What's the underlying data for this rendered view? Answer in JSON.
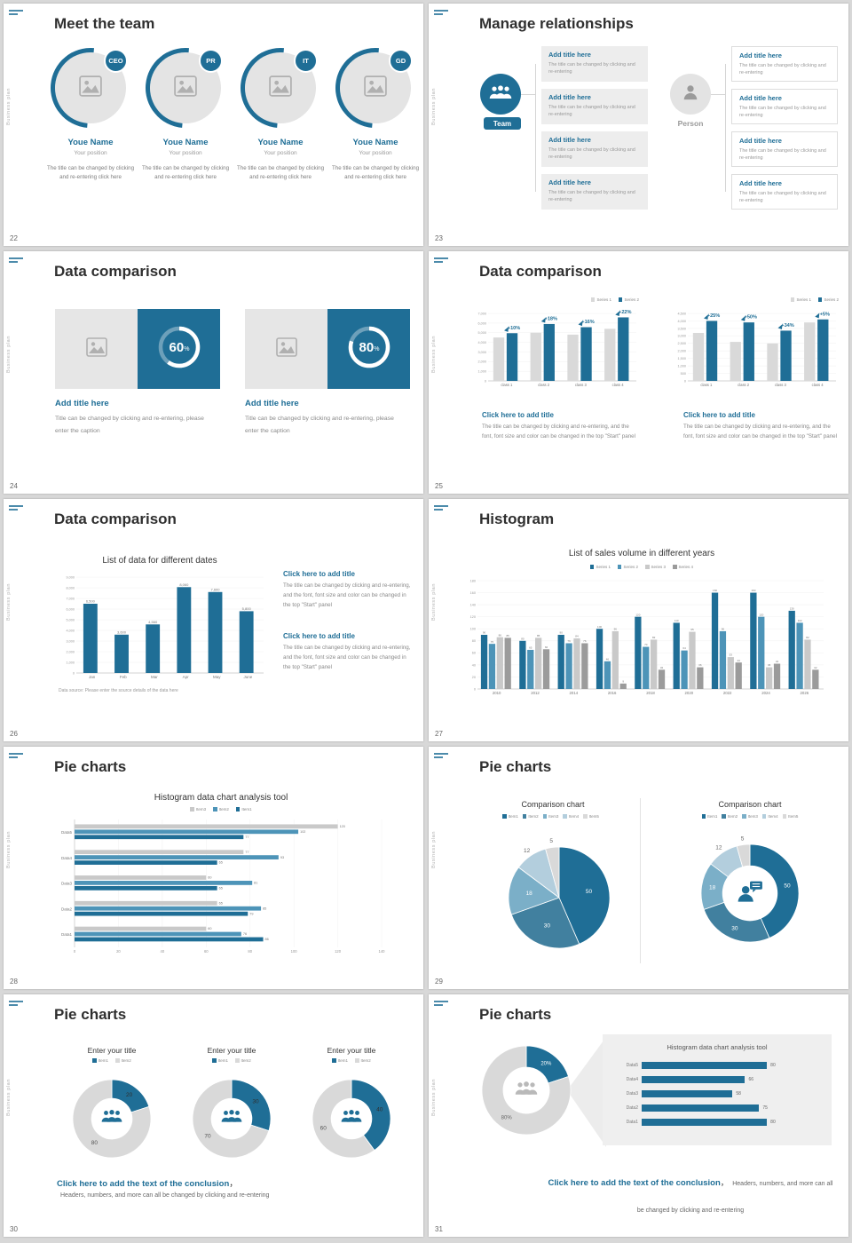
{
  "theme": {
    "accent": "#1f6e96",
    "gray_series": "#d9d9d9",
    "page_bg": "#d8d8d8"
  },
  "side_label": "Business plan",
  "slides": [
    {
      "number": "22",
      "title": "Meet the team",
      "members": [
        {
          "badge": "CEO",
          "name": "Youe Name",
          "position": "Your position",
          "desc": "The title can be changed by clicking and re-entering click here"
        },
        {
          "badge": "PR",
          "name": "Youe Name",
          "position": "Your position",
          "desc": "The title can be changed by clicking and re-entering click here"
        },
        {
          "badge": "IT",
          "name": "Youe Name",
          "position": "Your position",
          "desc": "The title can be changed by clicking and re-entering click here"
        },
        {
          "badge": "GD",
          "name": "Youe Name",
          "position": "Your position",
          "desc": "The title can be changed by clicking and re-entering click here"
        }
      ]
    },
    {
      "number": "23",
      "title": "Manage relationships",
      "team_label": "Team",
      "person_label": "Person",
      "box_title": "Add title here",
      "box_text": "The title can be changed by clicking and re-entering"
    },
    {
      "number": "24",
      "title": "Data comparison",
      "cards": [
        {
          "percent": 60,
          "title": "Add title here",
          "caption": "Title can be changed by clicking and re-entering, please enter the caption"
        },
        {
          "percent": 80,
          "title": "Add title here",
          "caption": "Title can be changed by clicking and re-entering, please enter the caption"
        }
      ]
    },
    {
      "number": "25",
      "title": "Data comparison",
      "charts": [
        {
          "type": "bar",
          "legend": [
            "Series 1",
            "Series 2"
          ],
          "colors": [
            "#d9d9d9",
            "#1f6e96"
          ],
          "categories": [
            "class 1",
            "class 2",
            "class 3",
            "class 4"
          ],
          "series": [
            {
              "name": "Series 1",
              "values": [
                4500,
                5000,
                4800,
                5400
              ]
            },
            {
              "name": "Series 2",
              "values": [
                4950,
                5900,
                5570,
                6590
              ]
            }
          ],
          "annotations": [
            "+10%",
            "+18%",
            "+16%",
            "+22%"
          ],
          "ymax": 7000,
          "ystep": 1000,
          "caption_title": "Click here to add title",
          "caption": "The title can be changed by clicking and re-entering, and the font, font size and color can be changed in the top \"Start\" panel"
        },
        {
          "type": "bar",
          "legend": [
            "Series 1",
            "Series 2"
          ],
          "colors": [
            "#d9d9d9",
            "#1f6e96"
          ],
          "categories": [
            "class 1",
            "class 2",
            "class 3",
            "class 4"
          ],
          "series": [
            {
              "name": "Series 1",
              "values": [
                3200,
                2600,
                2500,
                3900
              ]
            },
            {
              "name": "Series 2",
              "values": [
                4000,
                3900,
                3350,
                4100
              ]
            }
          ],
          "annotations": [
            "+25%",
            "+50%",
            "+34%",
            "+5%"
          ],
          "ymax": 4500,
          "ystep": 500,
          "caption_title": "Click here to add title",
          "caption": "The title can be changed by clicking and re-entering, and the font, font size and color can be changed in the top \"Start\" panel"
        }
      ]
    },
    {
      "number": "26",
      "title": "Data comparison",
      "chart": {
        "type": "bar",
        "title": "List of data for different dates",
        "categories": [
          "Jan",
          "Feb",
          "Mar",
          "Apr",
          "May",
          "June"
        ],
        "values": [
          6500,
          3600,
          4560,
          8060,
          7600,
          5800
        ],
        "color": "#1f6e96",
        "ymax": 9000,
        "ystep": 1000,
        "source": "Data source: Please enter the source details of the data here"
      },
      "captions": [
        {
          "title": "Click here to add title",
          "text": "The title can be changed by clicking and re-entering, and the font, font size and color can be changed in the top \"Start\" panel"
        },
        {
          "title": "Click here to add title",
          "text": "The title can be changed by clicking and re-entering, and the font, font size and color can be changed in the top \"Start\" panel"
        }
      ]
    },
    {
      "number": "27",
      "title": "Histogram",
      "chart": {
        "type": "bar",
        "title": "List of sales volume in different years",
        "legend": [
          "Series 1",
          "Series 2",
          "Series 3",
          "Series 4"
        ],
        "colors": [
          "#1f6e96",
          "#4d94b8",
          "#c9c9c9",
          "#9b9b9b"
        ],
        "categories": [
          "2010",
          "2012",
          "2014",
          "2016",
          "2018",
          "2020",
          "2022",
          "2024",
          "2026"
        ],
        "series": [
          {
            "name": "Series 1",
            "values": [
              90,
              80,
              90,
              100,
              120,
              110,
              160,
              160,
              130
            ]
          },
          {
            "name": "Series 2",
            "values": [
              75,
              65,
              76,
              46,
              70,
              64,
              96,
              120,
              110
            ]
          },
          {
            "name": "Series 3",
            "values": [
              86,
              85,
              84,
              96,
              82,
              95,
              53,
              36,
              82
            ]
          },
          {
            "name": "Series 4",
            "values": [
              85,
              66,
              76,
              9,
              32,
              36,
              44,
              42,
              32
            ]
          }
        ],
        "ymax": 180,
        "ystep": 20
      }
    },
    {
      "number": "28",
      "title": "Pie charts",
      "chart": {
        "type": "bar-horizontal",
        "title": "Histogram data chart analysis tool",
        "legend": [
          "Item3",
          "Item2",
          "Item1"
        ],
        "colors": [
          "#c9c9c9",
          "#4d94b8",
          "#1f6e96"
        ],
        "categories": [
          "Data5",
          "Data4",
          "Data3",
          "Data2",
          "Data1"
        ],
        "series": [
          {
            "name": "Item3",
            "values": [
              120,
              77,
              60,
              65,
              60
            ]
          },
          {
            "name": "Item2",
            "values": [
              102,
              93,
              81,
              85,
              76
            ]
          },
          {
            "name": "Item1",
            "values": [
              77,
              65,
              65,
              79,
              86
            ]
          }
        ],
        "xmax": 140,
        "xstep": 20
      }
    },
    {
      "number": "29",
      "title": "Pie charts",
      "charts": [
        {
          "type": "pie",
          "title": "Comparison chart",
          "legend": [
            "Item1",
            "Item2",
            "Item3",
            "Item4",
            "Item5"
          ],
          "colors": [
            "#1f6e96",
            "#41809f",
            "#7bafc8",
            "#b3cedd",
            "#d9d9d9"
          ],
          "values": [
            50,
            30,
            18,
            12,
            5
          ]
        },
        {
          "type": "donut",
          "title": "Comparison chart",
          "legend": [
            "Item1",
            "Item2",
            "Item3",
            "Item4",
            "Item5"
          ],
          "colors": [
            "#1f6e96",
            "#41809f",
            "#7bafc8",
            "#b3cedd",
            "#d9d9d9"
          ],
          "values": [
            50,
            30,
            18,
            12,
            5
          ]
        }
      ]
    },
    {
      "number": "30",
      "title": "Pie charts",
      "charts": [
        {
          "type": "donut",
          "title": "Enter your title",
          "legend": [
            "Item1",
            "Item2"
          ],
          "colors": [
            "#1f6e96",
            "#d9d9d9"
          ],
          "values": [
            20,
            80
          ],
          "label_colors": [
            "#2f2f2f",
            "#555555"
          ]
        },
        {
          "type": "donut",
          "title": "Enter your title",
          "legend": [
            "Item1",
            "Item2"
          ],
          "colors": [
            "#1f6e96",
            "#d9d9d9"
          ],
          "values": [
            30,
            70
          ],
          "label_colors": [
            "#2f2f2f",
            "#555555"
          ]
        },
        {
          "type": "donut",
          "title": "Enter your title",
          "legend": [
            "Item1",
            "Item2"
          ],
          "colors": [
            "#1f6e96",
            "#d9d9d9"
          ],
          "values": [
            40,
            60
          ],
          "label_colors": [
            "#2f2f2f",
            "#555555"
          ]
        }
      ],
      "conclusion_title": "Click here to add the text of the conclusion",
      "conclusion_sep": "，",
      "conclusion_text": "Headers, numbers, and more can all be changed by clicking and re-entering"
    },
    {
      "number": "31",
      "title": "Pie charts",
      "donut": {
        "type": "donut",
        "values": [
          20,
          80
        ],
        "labels": [
          "20%",
          "80%"
        ],
        "colors": [
          "#1f6e96",
          "#d9d9d9"
        ],
        "label_colors": [
          "#ffffff",
          "#666666"
        ]
      },
      "panel": {
        "title": "Histogram data chart analysis tool",
        "categories": [
          "Data5",
          "Data4",
          "Data3",
          "Data2",
          "Data1"
        ],
        "values": [
          80,
          66,
          58,
          75,
          80
        ],
        "color": "#1f6e96",
        "xmax": 85
      },
      "conclusion_title": "Click here to add the text of the conclusion",
      "conclusion_sep": "，",
      "conclusion_text": "Headers, numbers, and more can all be changed by clicking and re-entering"
    }
  ]
}
